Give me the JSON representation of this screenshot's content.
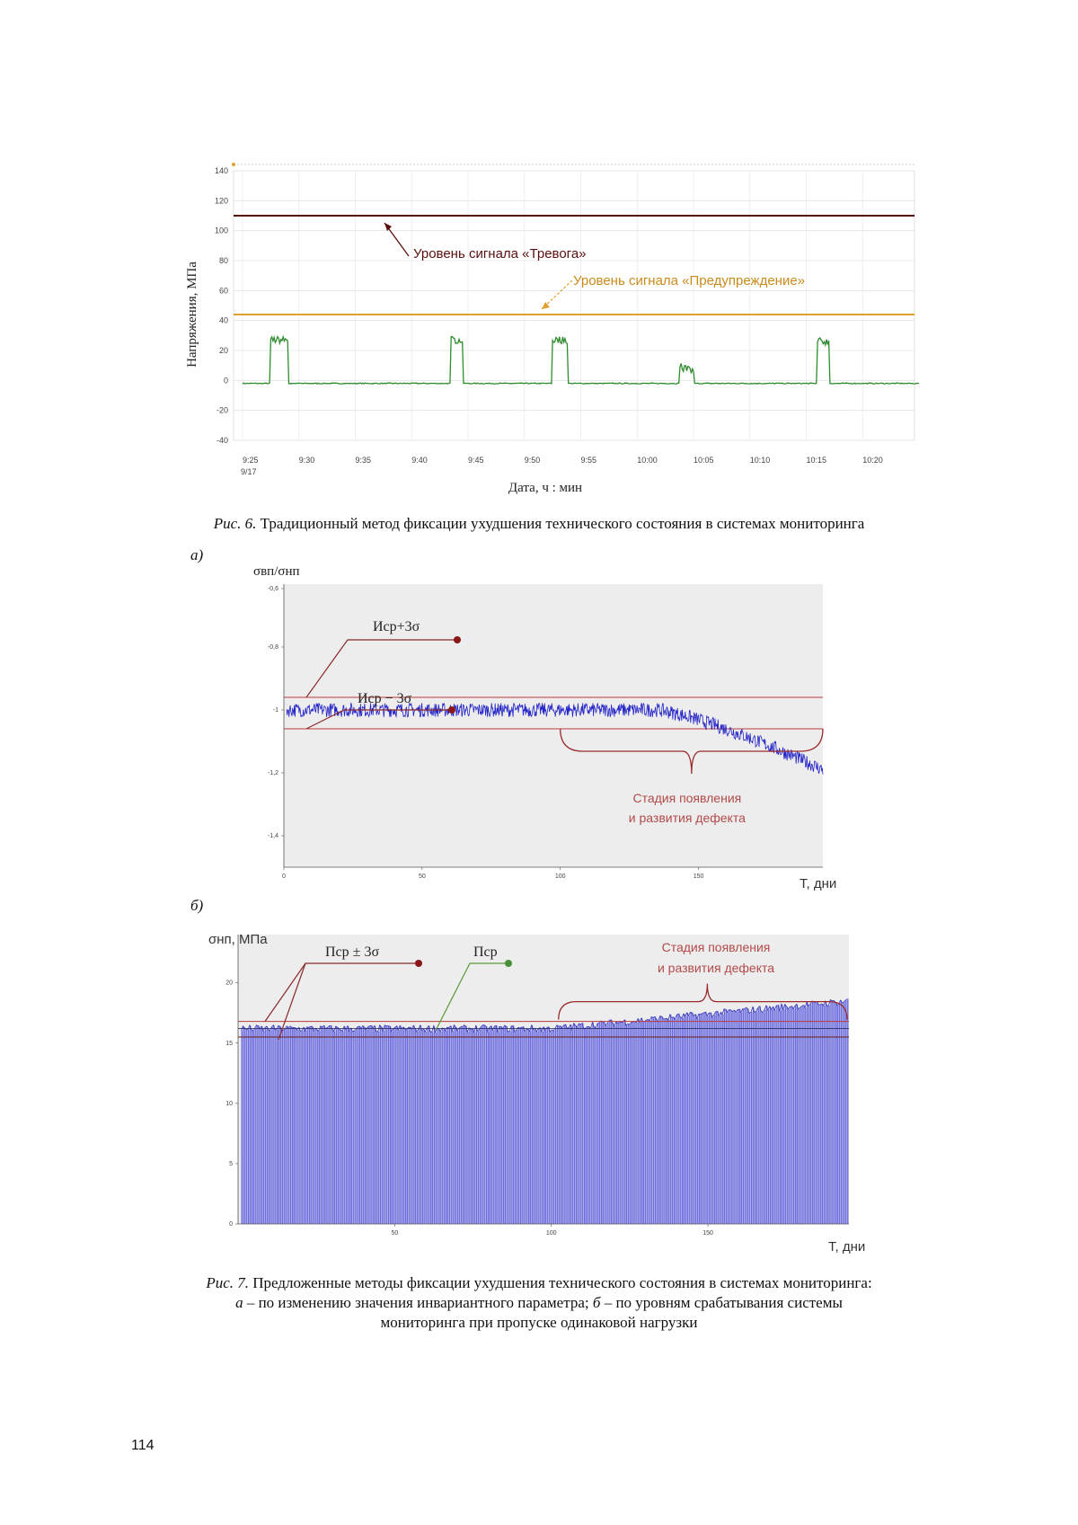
{
  "page_number": "114",
  "fig6": {
    "caption_prefix": "Рис. 6.",
    "caption_text": "Традиционный метод фиксации ухудшения технического состояния в системах мониторинга"
  },
  "fig7": {
    "caption_prefix": "Рис. 7.",
    "caption_line1": "Предложенные методы фиксации ухудшения технического состояния в системах мониторинга:",
    "caption_a": "а",
    "caption_line2_a": " – по изменению значения инвариантного параметра; ",
    "caption_b": "б",
    "caption_line2_b": " – по уровням срабатывания системы",
    "caption_line3": "мониторинга при пропуске одинаковой нагрузки",
    "panel_a_letter": "а)",
    "panel_b_letter": "б)"
  },
  "chart_data": [
    {
      "type": "line",
      "ylabel": "Напряжения, МПа",
      "xlabel": "Дата, ч : мин",
      "ylim": [
        -40,
        140
      ],
      "yticks": [
        -40,
        -20,
        0,
        20,
        40,
        60,
        80,
        100,
        120,
        140
      ],
      "xlim_minutes": [
        0,
        60
      ],
      "xticks_minutes": [
        0,
        5,
        10,
        15,
        20,
        25,
        30,
        35,
        40,
        45,
        50,
        55
      ],
      "xtick_labels": [
        "9:25",
        "9:30",
        "9:35",
        "9:40",
        "9:45",
        "9:50",
        "9:55",
        "10:00",
        "10:05",
        "10:10",
        "10:15",
        "10:20"
      ],
      "xdate_label": "9/17",
      "grid": true,
      "thresholds": [
        {
          "label": "Уровень сигнала «Тревога»",
          "value": 110,
          "color": "#5a0f0f"
        },
        {
          "label": "Уровень сигнала «Предупреждение»",
          "value": 44,
          "color": "#e0a030"
        }
      ],
      "series": [
        {
          "color": "#2e8b2e",
          "baseline": -2,
          "pulses": [
            {
              "start": 2.5,
              "end": 4.0,
              "level": 27
            },
            {
              "start": 18.5,
              "end": 19.5,
              "level": 27
            },
            {
              "start": 27.5,
              "end": 28.8,
              "level": 27
            },
            {
              "start": 38.8,
              "end": 40.0,
              "level": 10
            },
            {
              "start": 51.0,
              "end": 52.0,
              "level": 26
            }
          ]
        }
      ]
    },
    {
      "type": "line",
      "ylabel": "σвп/σнп",
      "xlabel": "T, дни",
      "ylim": [
        -1.5,
        -0.6
      ],
      "yticks": [
        -0.6,
        -0.8,
        -1,
        -1.2,
        -1.4
      ],
      "ytick_labels": [
        "-0,6",
        "-0,8",
        "-1",
        "-1,2",
        "-1,4"
      ],
      "xlim": [
        0,
        195
      ],
      "xticks": [
        0,
        50,
        100,
        150
      ],
      "grid": false,
      "series": [
        {
          "color": "#2323c8",
          "mean_before": -1.0,
          "start_day": 135,
          "end_day": 195,
          "end_value": -1.19
        }
      ],
      "bands": [
        {
          "label": "Иср+3σ",
          "value": -0.96
        },
        {
          "label": "Иср − 3σ",
          "value": -1.06
        }
      ],
      "annotation": {
        "line1": "Стадия появления",
        "line2": "и развития дефекта",
        "from_day": 100,
        "to_day": 195
      }
    },
    {
      "type": "bar",
      "ylabel": "σнп, МПа",
      "xlabel": "T, дни",
      "ylim": [
        0,
        24
      ],
      "yticks": [
        0,
        5,
        10,
        15,
        20
      ],
      "xlim": [
        0,
        195
      ],
      "xticks": [
        50,
        100,
        150
      ],
      "grid": false,
      "series": [
        {
          "color": "#6b6bdf",
          "mean_before": 16.2,
          "start_day": 100,
          "end_day": 195,
          "end_value": 18.5
        }
      ],
      "bands": [
        {
          "label": "Пср ± 3σ",
          "value": 16.8
        },
        {
          "label": "Пср ± 3σ",
          "value": 15.5
        }
      ],
      "mean_label": "Пср",
      "annotation": {
        "line1": "Стадия появления",
        "line2": "и развития дефекта",
        "from_day": 100,
        "to_day": 195
      }
    }
  ]
}
